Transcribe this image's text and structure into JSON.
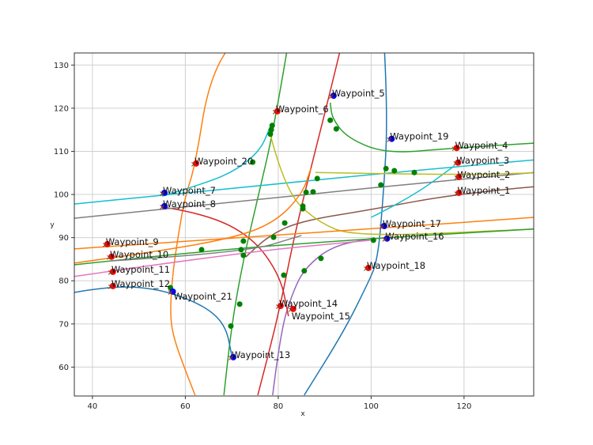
{
  "chart_data": {
    "type": "line",
    "title": "",
    "xlabel": "x",
    "ylabel": "y",
    "xlim": [
      36.1,
      135.0
    ],
    "ylim": [
      53.3,
      132.8
    ],
    "grid": true,
    "xticks": [
      "40",
      "60",
      "80",
      "100",
      "120"
    ],
    "yticks": [
      "60",
      "70",
      "80",
      "90",
      "100",
      "110",
      "120",
      "130"
    ],
    "colors": {
      "blue": "#1f77b4",
      "orange": "#ff7f0e",
      "green": "#2ca02c",
      "red": "#d62728",
      "purple": "#9467bd",
      "brown": "#8c564b",
      "pink": "#e377c2",
      "gray": "#7f7f7f",
      "olive": "#bcbd22",
      "cyan": "#17becf",
      "marker_red": "#ff0000",
      "marker_blue": "#0000ff",
      "marker_green": "#008000"
    },
    "series": [
      {
        "color": "#ff7f0e",
        "points": [
          [
            68.6,
            132.8
          ],
          [
            65.2,
            127.3
          ],
          [
            62.1,
            106.6
          ],
          [
            59.9,
            99.3
          ],
          [
            58.4,
            90.1
          ],
          [
            57.2,
            81
          ],
          [
            56.7,
            71.8
          ],
          [
            57.6,
            66.3
          ],
          [
            60.1,
            59
          ],
          [
            62.1,
            53.5
          ]
        ]
      },
      {
        "color": "#2ca02c",
        "points": [
          [
            81.8,
            132.8
          ],
          [
            79,
            115
          ],
          [
            75.8,
            100
          ],
          [
            72.5,
            85
          ],
          [
            70,
            70
          ],
          [
            68.3,
            53.5
          ]
        ]
      },
      {
        "color": "#d62728",
        "points": [
          [
            93.2,
            132.8
          ],
          [
            91,
            123
          ],
          [
            87,
            106
          ],
          [
            83.4,
            90.1
          ],
          [
            80,
            71.8
          ],
          [
            75.6,
            53.5
          ]
        ]
      },
      {
        "color": "#1f77b4",
        "points": [
          [
            102.9,
            132.8
          ],
          [
            103.6,
            117.6
          ],
          [
            102.6,
            99.3
          ],
          [
            101.4,
            84.6
          ],
          [
            99.2,
            79.2
          ],
          [
            94.1,
            68.2
          ],
          [
            85.6,
            53.5
          ]
        ]
      },
      {
        "color": "#9467bd",
        "points": [
          [
            78.8,
            53.5
          ],
          [
            80.5,
            68.2
          ],
          [
            83,
            77
          ],
          [
            85.6,
            82.8
          ],
          [
            91.5,
            88
          ],
          [
            100,
            89.8
          ]
        ]
      },
      {
        "color": "#1f77b4",
        "points": [
          [
            36.1,
            77.3
          ],
          [
            43.9,
            78.8
          ],
          [
            54.1,
            78.2
          ],
          [
            63.5,
            74.6
          ],
          [
            68.6,
            70
          ],
          [
            70,
            62.7
          ]
        ]
      },
      {
        "color": "#d62728",
        "points": [
          [
            55,
            97.1
          ],
          [
            64.3,
            95.6
          ],
          [
            74.5,
            90.1
          ],
          [
            80.5,
            81
          ],
          [
            82.2,
            71.8
          ]
        ]
      },
      {
        "color": "#8c564b",
        "points": [
          [
            135,
            101.8
          ],
          [
            118.7,
            100.2
          ],
          [
            100,
            96.5
          ],
          [
            84.7,
            93.8
          ],
          [
            78,
            90.5
          ],
          [
            73,
            85.5
          ]
        ]
      },
      {
        "color": "#17becf",
        "points": [
          [
            36.1,
            97.8
          ],
          [
            80,
            102.6
          ],
          [
            118,
            106.4
          ],
          [
            135,
            108
          ]
        ]
      },
      {
        "color": "#7f7f7f",
        "points": [
          [
            36.1,
            94.5
          ],
          [
            80,
            99.4
          ],
          [
            118,
            103.4
          ],
          [
            135,
            105.1
          ]
        ]
      },
      {
        "color": "#17becf",
        "points": [
          [
            55,
            99.6
          ],
          [
            64.3,
            102.6
          ],
          [
            71.1,
            105.7
          ],
          [
            76.2,
            110.3
          ],
          [
            78.3,
            115.8
          ]
        ]
      },
      {
        "color": "#17becf",
        "points": [
          [
            100,
            94.7
          ],
          [
            108.6,
            99.3
          ],
          [
            117.9,
            106.6
          ]
        ]
      },
      {
        "color": "#bcbd22",
        "points": [
          [
            78.3,
            113.9
          ],
          [
            81.4,
            101.1
          ],
          [
            88.1,
            93.8
          ],
          [
            96.6,
            90.1
          ],
          [
            135,
            92
          ]
        ]
      },
      {
        "color": "#bcbd22",
        "points": [
          [
            88,
            105.1
          ],
          [
            118,
            104.5
          ],
          [
            135,
            105
          ]
        ]
      },
      {
        "color": "#ff7f0e",
        "points": [
          [
            36.1,
            87.4
          ],
          [
            100,
            92
          ],
          [
            135,
            94.7
          ]
        ]
      },
      {
        "color": "#ff7f0e",
        "points": [
          [
            36.1,
            84.1
          ],
          [
            54.1,
            86.8
          ],
          [
            71.1,
            90.1
          ],
          [
            79.6,
            93.8
          ],
          [
            85.2,
            100.2
          ],
          [
            87,
            106
          ]
        ]
      },
      {
        "color": "#2ca02c",
        "points": [
          [
            135,
            111.9
          ],
          [
            117.9,
            110.8
          ],
          [
            103.4,
            109.4
          ],
          [
            95,
            113
          ],
          [
            91.6,
            117.6
          ],
          [
            91.2,
            121.3
          ]
        ]
      },
      {
        "color": "#2ca02c",
        "points": [
          [
            36.1,
            83.7
          ],
          [
            62.6,
            86.8
          ],
          [
            100,
            89.8
          ],
          [
            135,
            92
          ]
        ]
      },
      {
        "color": "#e377c2",
        "points": [
          [
            36.1,
            81
          ],
          [
            71.1,
            86.5
          ],
          [
            100,
            89.4
          ]
        ]
      },
      {
        "color": "#7f7f7f",
        "points": [
          [
            43.9,
            84.6
          ],
          [
            72.8,
            86.5
          ],
          [
            85,
            90.5
          ]
        ]
      }
    ],
    "waypoints": [
      {
        "label": "Waypoint_1",
        "x": 118.4,
        "y": 100.2,
        "marker": "red"
      },
      {
        "label": "Waypoint_2",
        "x": 118.4,
        "y": 103.9,
        "marker": "red"
      },
      {
        "label": "Waypoint_3",
        "x": 118.2,
        "y": 107.2,
        "marker": "red"
      },
      {
        "label": "Waypoint_4",
        "x": 117.9,
        "y": 110.6,
        "marker": "red"
      },
      {
        "label": "Waypoint_5",
        "x": 91.4,
        "y": 122.7,
        "marker": "blue"
      },
      {
        "label": "Waypoint_6",
        "x": 79.3,
        "y": 119.1,
        "marker": "red"
      },
      {
        "label": "Waypoint_7",
        "x": 55.0,
        "y": 100.2,
        "marker": "blue"
      },
      {
        "label": "Waypoint_8",
        "x": 55.0,
        "y": 97.1,
        "marker": "blue"
      },
      {
        "label": "Waypoint_9",
        "x": 42.7,
        "y": 88.3,
        "marker": "red"
      },
      {
        "label": "Waypoint_10",
        "x": 43.6,
        "y": 85.4,
        "marker": "red"
      },
      {
        "label": "Waypoint_11",
        "x": 43.9,
        "y": 81.9,
        "marker": "red"
      },
      {
        "label": "Waypoint_12",
        "x": 43.9,
        "y": 78.6,
        "marker": "red"
      },
      {
        "label": "Waypoint_13",
        "x": 69.8,
        "y": 62.1,
        "marker": "blue"
      },
      {
        "label": "Waypoint_14",
        "x": 80.0,
        "y": 74.0,
        "marker": "red"
      },
      {
        "label": "Waypoint_15",
        "x": 82.7,
        "y": 73.3,
        "marker": "red"
      },
      {
        "label": "Waypoint_16",
        "x": 102.9,
        "y": 89.6,
        "marker": "blue"
      },
      {
        "label": "Waypoint_17",
        "x": 102.3,
        "y": 92.5,
        "marker": "blue"
      },
      {
        "label": "Waypoint_18",
        "x": 98.9,
        "y": 82.8,
        "marker": "red"
      },
      {
        "label": "Waypoint_19",
        "x": 103.9,
        "y": 112.7,
        "marker": "blue"
      },
      {
        "label": "Waypoint_20",
        "x": 61.8,
        "y": 107.0,
        "marker": "red"
      },
      {
        "label": "Waypoint_21",
        "x": 56.8,
        "y": 77.3,
        "marker": "blue"
      }
    ],
    "green_points": [
      [
        74.5,
        107.5
      ],
      [
        78.3,
        114
      ],
      [
        78.5,
        115
      ],
      [
        78.7,
        116
      ],
      [
        88.4,
        103.7
      ],
      [
        86,
        100.5
      ],
      [
        87.5,
        100.6
      ],
      [
        85.3,
        97.3
      ],
      [
        85.3,
        96.7
      ],
      [
        81.4,
        93.4
      ],
      [
        79,
        90.1
      ],
      [
        72.5,
        89.2
      ],
      [
        72,
        87.2
      ],
      [
        72.5,
        85.9
      ],
      [
        63.5,
        87.2
      ],
      [
        81.2,
        81.3
      ],
      [
        85.6,
        82.3
      ],
      [
        89.2,
        85.2
      ],
      [
        71.7,
        74.6
      ],
      [
        69.8,
        69.5
      ],
      [
        91.2,
        117.2
      ],
      [
        92.5,
        115.2
      ],
      [
        103.2,
        106
      ],
      [
        105,
        105.5
      ],
      [
        109.3,
        105.1
      ],
      [
        102.1,
        102.2
      ],
      [
        56.8,
        78.4
      ],
      [
        100.5,
        89.4
      ]
    ]
  }
}
